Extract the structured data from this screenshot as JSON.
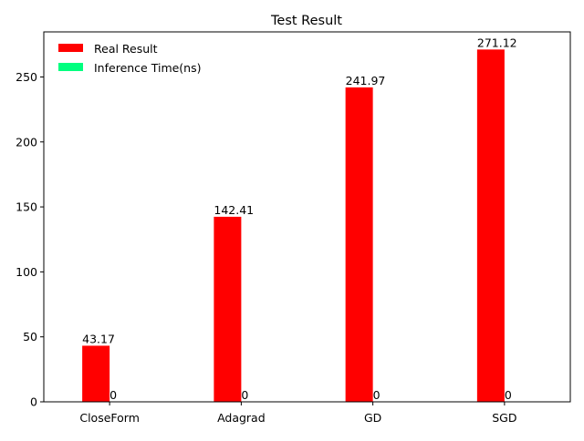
{
  "chart_data": {
    "type": "bar",
    "title": "Test Result",
    "xlabel": "",
    "ylabel": "",
    "categories": [
      "CloseForm",
      "Adagrad",
      "GD",
      "SGD"
    ],
    "series": [
      {
        "name": "Real Result",
        "color": "#ff0000",
        "values": [
          43.17,
          142.41,
          241.97,
          271.12
        ],
        "labels": [
          "43.17",
          "142.41",
          "241.97",
          "271.12"
        ]
      },
      {
        "name": "Inference Time(ns)",
        "color": "#00ff7f",
        "values": [
          0,
          0,
          0,
          0
        ],
        "labels": [
          "0",
          "0",
          "0",
          "0"
        ]
      }
    ],
    "ylim": [
      0,
      284.68
    ],
    "yticks": [
      0,
      50,
      100,
      150,
      200,
      250
    ],
    "legend_position": "top-left",
    "grid": false
  }
}
